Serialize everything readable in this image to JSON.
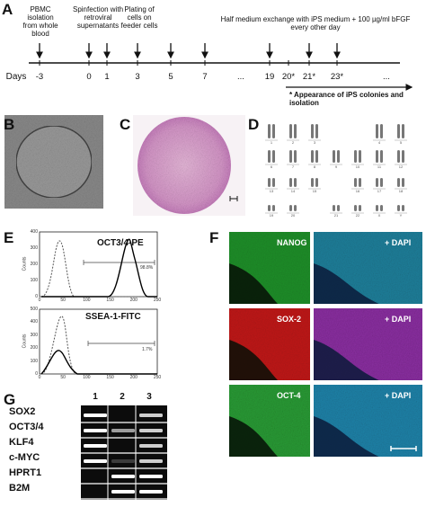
{
  "panel_a": {
    "label": "A",
    "events": [
      "PBMC isolation from whole blood",
      "Spinfection with retroviral supernatants",
      "Plating of cells on feeder cells",
      "Half medium exchange with iPS medium + 100 µg/ml bFGF every other day"
    ],
    "days_label": "Days",
    "days": [
      "-3",
      "0",
      "1",
      "3",
      "5",
      "7",
      "...",
      "19",
      "20*",
      "21*",
      "23*",
      "..."
    ],
    "note": "* Appearance of iPS colonies and isolation"
  },
  "panel_b": {
    "label": "B"
  },
  "panel_c": {
    "label": "C"
  },
  "panel_d": {
    "label": "D",
    "chromosomes": [
      "1",
      "2",
      "3",
      "4",
      "5",
      "6",
      "7",
      "8",
      "9",
      "10",
      "11",
      "12",
      "13",
      "14",
      "15",
      "16",
      "17",
      "18",
      "19",
      "20",
      "21",
      "22",
      "X",
      "Y"
    ]
  },
  "panel_e": {
    "label": "E",
    "histograms": [
      {
        "marker": "OCT3/4-PE",
        "gate": "98.8%",
        "ylabel": "Counts",
        "yticks": [
          "0",
          "100",
          "200",
          "300",
          "400"
        ],
        "xticks": [
          "0",
          "50",
          "100",
          "150",
          "200",
          "250"
        ]
      },
      {
        "marker": "SSEA-1-FITC",
        "gate": "1.7%",
        "ylabel": "Counts",
        "yticks": [
          "0",
          "100",
          "200",
          "300",
          "400",
          "500"
        ],
        "xticks": [
          "0",
          "50",
          "100",
          "150",
          "200",
          "250"
        ]
      }
    ]
  },
  "panel_f": {
    "label": "F",
    "rows": [
      {
        "marker": "NANOG",
        "merge": "+ DAPI"
      },
      {
        "marker": "SOX-2",
        "merge": "+ DAPI"
      },
      {
        "marker": "OCT-4",
        "merge": "+ DAPI"
      }
    ]
  },
  "panel_g": {
    "label": "G",
    "lanes": [
      "1",
      "2",
      "3"
    ],
    "genes": [
      "SOX2",
      "OCT3/4",
      "KLF4",
      "c-MYC",
      "HPRT1",
      "B2M"
    ]
  }
}
